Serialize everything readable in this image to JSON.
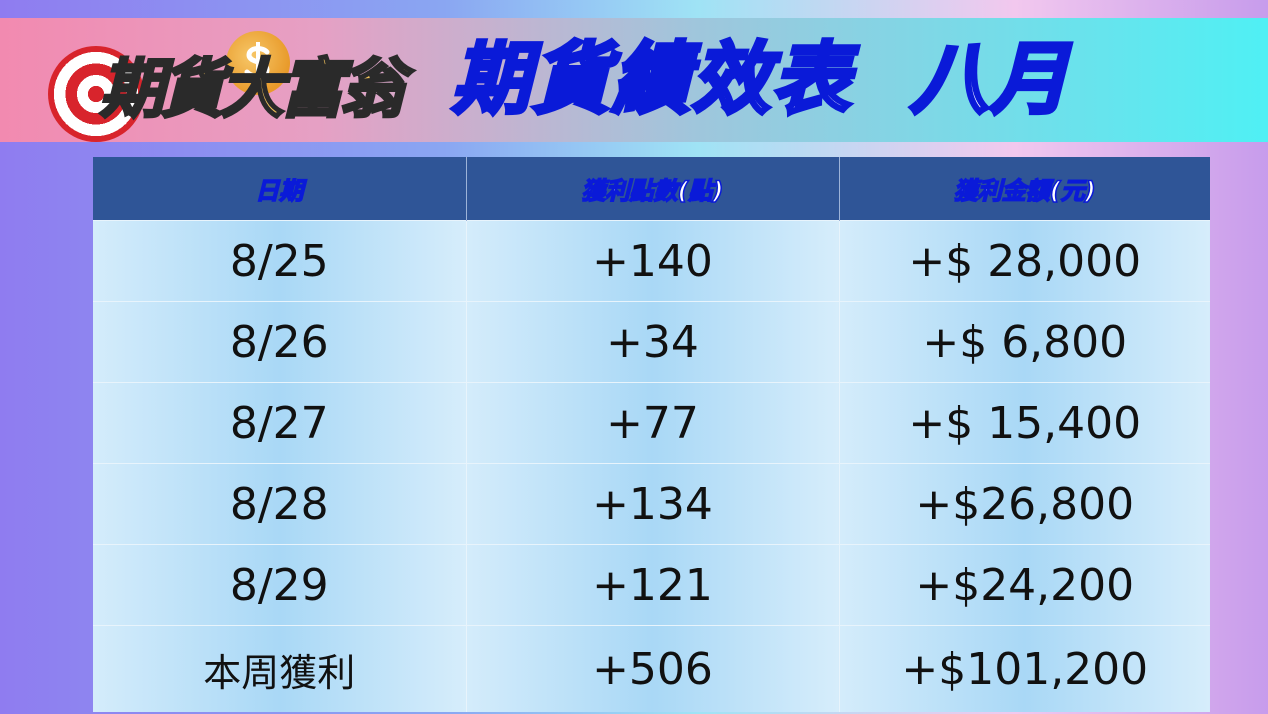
{
  "banner": {
    "logo_text": "期貨大富翁",
    "title": "期貨績效表  八月"
  },
  "table": {
    "headers": [
      "日期",
      "獲利點數(點)",
      "獲利金額(元)"
    ],
    "rows": [
      [
        "8/25",
        "+140",
        "+$ 28,000"
      ],
      [
        "8/26",
        "+34",
        "+$ 6,800"
      ],
      [
        "8/27",
        "+77",
        "+$ 15,400"
      ],
      [
        "8/28",
        "+134",
        "+$26,800"
      ],
      [
        "8/29",
        "+121",
        "+$24,200"
      ]
    ],
    "total": [
      "本周獲利",
      "+506",
      "+$101,200"
    ]
  },
  "colors": {
    "header_bg": "#2f5597",
    "title_stroke": "#0a1ad8"
  }
}
